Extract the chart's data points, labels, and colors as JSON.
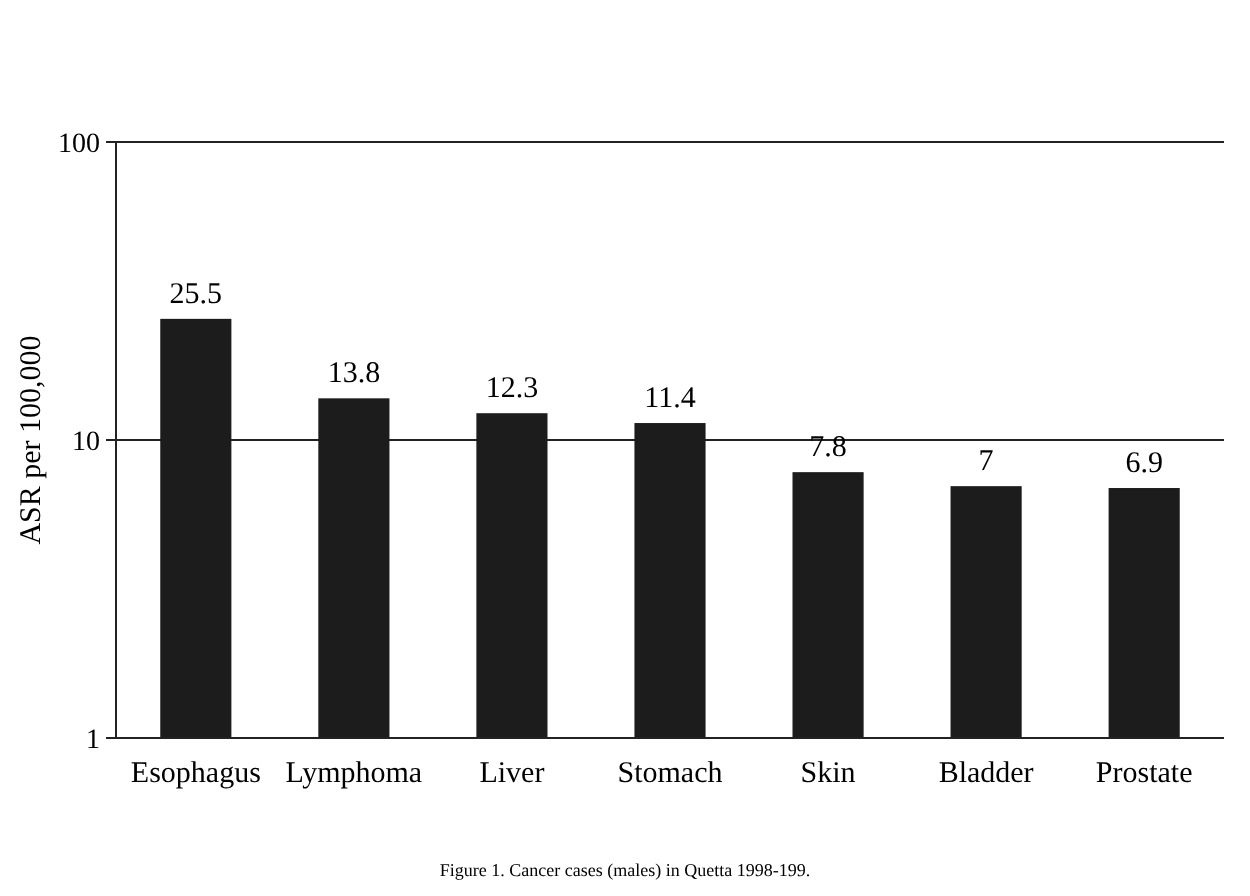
{
  "chart_data": {
    "type": "bar",
    "ylabel": "ASR per 100,000",
    "categories": [
      "Esophagus",
      "Lymphoma",
      "Liver",
      "Stomach",
      "Skin",
      "Bladder",
      "Prostate"
    ],
    "values": [
      25.5,
      13.8,
      12.3,
      11.4,
      7.8,
      7,
      6.9
    ],
    "color": "#1c1c1c",
    "ylim": [
      1,
      100
    ],
    "yticks": [
      1,
      10,
      100
    ],
    "log": true,
    "grid": "y",
    "data_labels": true,
    "annotations": [
      "Figure 1. Cancer cases (males) in Quetta 1998-199."
    ]
  }
}
